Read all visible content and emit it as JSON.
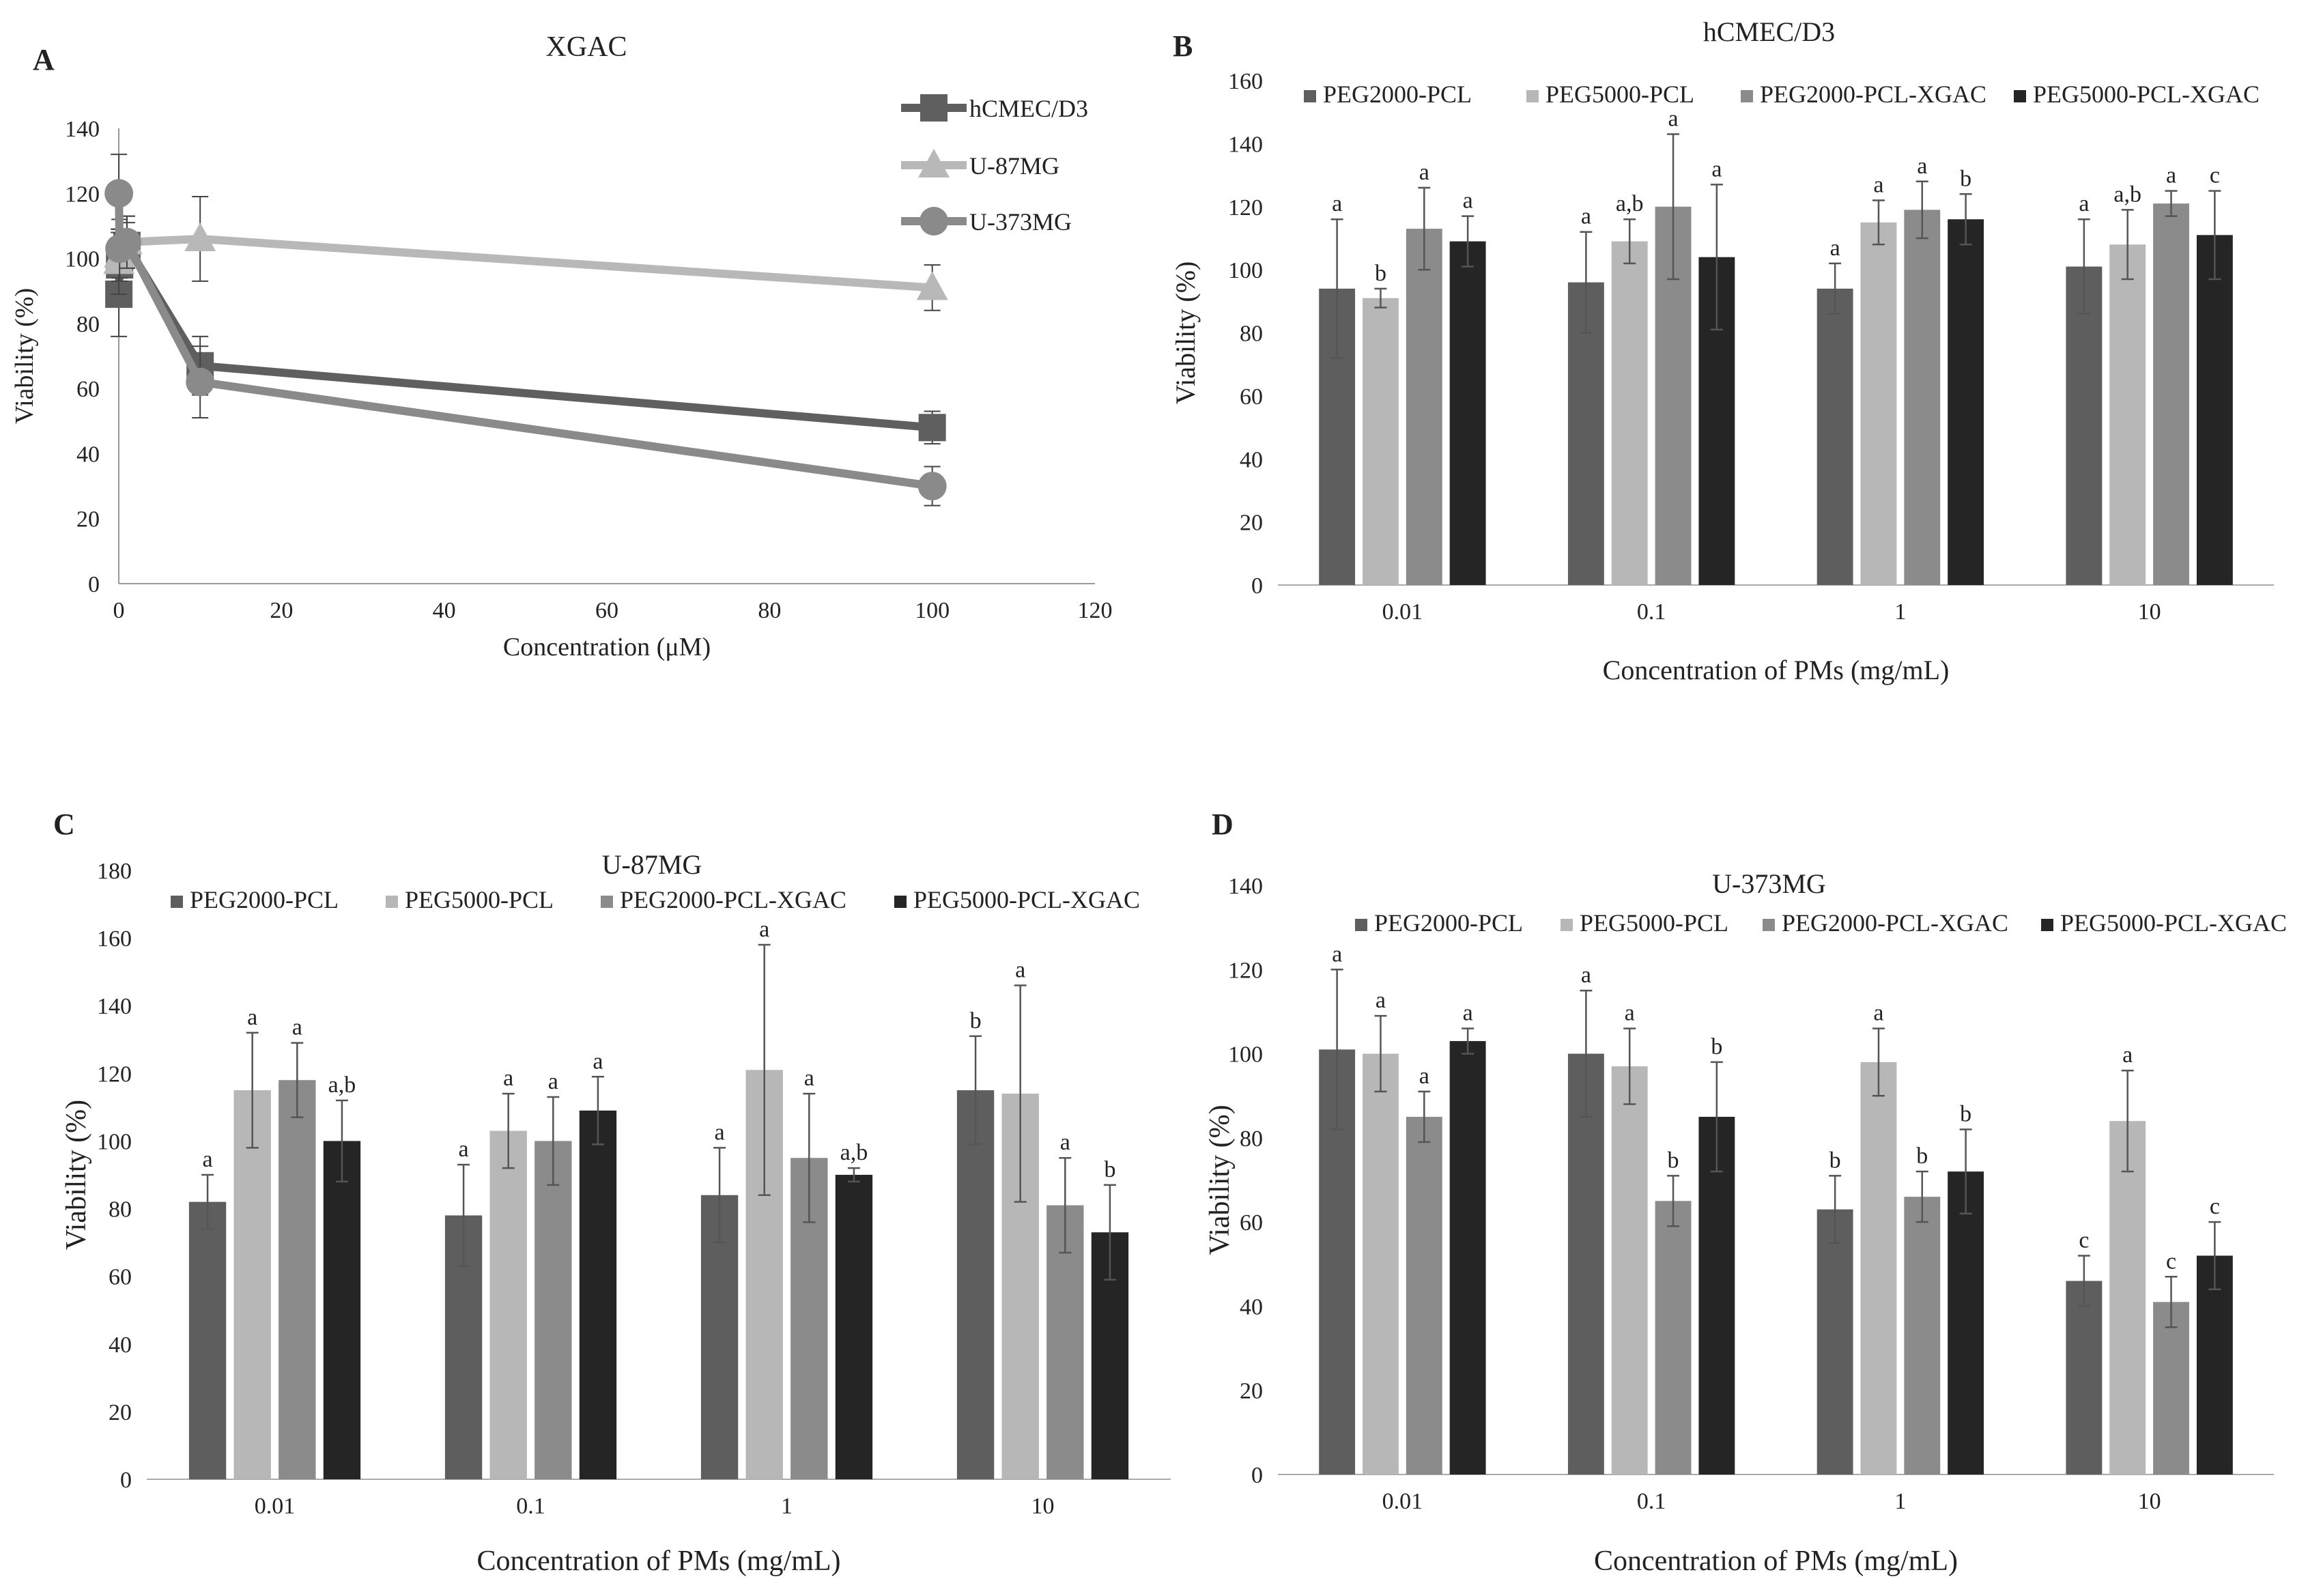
{
  "chart_data": [
    {
      "panel": "A",
      "type": "line",
      "title": "XGAC",
      "xlabel": "Concentration (μM)",
      "ylabel": "Viability (%)",
      "xlim": [
        0,
        120
      ],
      "ylim": [
        0,
        140
      ],
      "xticks": [
        0,
        20,
        40,
        60,
        80,
        100,
        120
      ],
      "yticks": [
        0,
        20,
        40,
        60,
        80,
        100,
        120,
        140
      ],
      "legend": "top-right",
      "series": [
        {
          "name": "hCMEC/D3",
          "color": "#5f5f5f",
          "marker": "square",
          "x": [
            0.01,
            0.1,
            1,
            10,
            100
          ],
          "y": [
            89,
            98,
            104,
            67,
            48
          ],
          "err": [
            13,
            11,
            7,
            9,
            5
          ]
        },
        {
          "name": "U-87MG",
          "color": "#b8b8b8",
          "marker": "triangle",
          "x": [
            0.01,
            0.1,
            1,
            10,
            100
          ],
          "y": [
            99,
            101,
            105,
            106,
            91
          ],
          "err": [
            10,
            8,
            8,
            13,
            7
          ]
        },
        {
          "name": "U-373MG",
          "color": "#8a8a8a",
          "marker": "circle",
          "x": [
            0.01,
            0.1,
            1,
            10,
            100
          ],
          "y": [
            120,
            103,
            105,
            62,
            30
          ],
          "err": [
            12,
            9,
            8,
            11,
            6
          ]
        }
      ]
    },
    {
      "panel": "B",
      "type": "bar",
      "title": "hCMEC/D3",
      "xlabel": "Concentration of PMs (mg/mL)",
      "ylabel": "Viability (%)",
      "ylim": [
        0,
        160
      ],
      "yticks": [
        0,
        20,
        40,
        60,
        80,
        100,
        120,
        140,
        160
      ],
      "categories": [
        "0.01",
        "0.1",
        "1",
        "10"
      ],
      "legend": "top",
      "series": [
        {
          "name": "PEG2000-PCL",
          "color": "#5e5e5e",
          "values": [
            94,
            96,
            94,
            101
          ],
          "err": [
            22,
            16,
            8,
            15
          ],
          "labels": [
            "a",
            "a",
            "a",
            "a"
          ]
        },
        {
          "name": "PEG5000-PCL",
          "color": "#b7b7b7",
          "values": [
            91,
            109,
            115,
            108
          ],
          "err": [
            3,
            7,
            7,
            11
          ],
          "labels": [
            "b",
            "a,b",
            "a",
            "a,b"
          ]
        },
        {
          "name": "PEG2000-PCL-XGAC",
          "color": "#8b8b8b",
          "values": [
            113,
            120,
            119,
            121
          ],
          "err": [
            13,
            23,
            9,
            4
          ],
          "labels": [
            "a",
            "a",
            "a",
            "a"
          ]
        },
        {
          "name": "PEG5000-PCL-XGAC",
          "color": "#252525",
          "values": [
            109,
            104,
            116,
            111
          ],
          "err": [
            8,
            23,
            8,
            14
          ],
          "labels": [
            "a",
            "a",
            "b",
            "c"
          ]
        }
      ]
    },
    {
      "panel": "C",
      "type": "bar",
      "title": "U-87MG",
      "xlabel": "Concentration of PMs (mg/mL)",
      "ylabel": "Viability (%)",
      "ylim": [
        0,
        180
      ],
      "yticks": [
        0,
        20,
        40,
        60,
        80,
        100,
        120,
        140,
        160,
        180
      ],
      "categories": [
        "0.01",
        "0.1",
        "1",
        "10"
      ],
      "legend": "top",
      "series": [
        {
          "name": "PEG2000-PCL",
          "color": "#5e5e5e",
          "values": [
            82,
            78,
            84,
            115
          ],
          "err": [
            8,
            15,
            14,
            16
          ],
          "labels": [
            "a",
            "a",
            "a",
            "b"
          ]
        },
        {
          "name": "PEG5000-PCL",
          "color": "#b7b7b7",
          "values": [
            115,
            103,
            121,
            114
          ],
          "err": [
            17,
            11,
            37,
            32
          ],
          "labels": [
            "a",
            "a",
            "a",
            "a"
          ]
        },
        {
          "name": "PEG2000-PCL-XGAC",
          "color": "#8b8b8b",
          "values": [
            118,
            100,
            95,
            81
          ],
          "err": [
            11,
            13,
            19,
            14
          ],
          "labels": [
            "a",
            "a",
            "a",
            "a"
          ]
        },
        {
          "name": "PEG5000-PCL-XGAC",
          "color": "#252525",
          "values": [
            100,
            109,
            90,
            73
          ],
          "err": [
            12,
            10,
            2,
            14
          ],
          "labels": [
            "a,b",
            "a",
            "a,b",
            "b"
          ]
        }
      ]
    },
    {
      "panel": "D",
      "type": "bar",
      "title": "U-373MG",
      "xlabel": "Concentration of PMs (mg/mL)",
      "ylabel": "Viability (%)",
      "ylim": [
        0,
        140
      ],
      "yticks": [
        0,
        20,
        40,
        60,
        80,
        100,
        120,
        140
      ],
      "categories": [
        "0.01",
        "0.1",
        "1",
        "10"
      ],
      "legend": "top",
      "series": [
        {
          "name": "PEG2000-PCL",
          "color": "#5e5e5e",
          "values": [
            101,
            100,
            63,
            46
          ],
          "err": [
            19,
            15,
            8,
            6
          ],
          "labels": [
            "a",
            "a",
            "b",
            "c"
          ]
        },
        {
          "name": "PEG5000-PCL",
          "color": "#b7b7b7",
          "values": [
            100,
            97,
            98,
            84
          ],
          "err": [
            9,
            9,
            8,
            12
          ],
          "labels": [
            "a",
            "a",
            "a",
            "a"
          ]
        },
        {
          "name": "PEG2000-PCL-XGAC",
          "color": "#8b8b8b",
          "values": [
            85,
            65,
            66,
            41
          ],
          "err": [
            6,
            6,
            6,
            6
          ],
          "labels": [
            "a",
            "b",
            "b",
            "c"
          ]
        },
        {
          "name": "PEG5000-PCL-XGAC",
          "color": "#252525",
          "values": [
            103,
            85,
            72,
            52
          ],
          "err": [
            3,
            13,
            10,
            8
          ],
          "labels": [
            "a",
            "b",
            "b",
            "c"
          ]
        }
      ]
    }
  ]
}
